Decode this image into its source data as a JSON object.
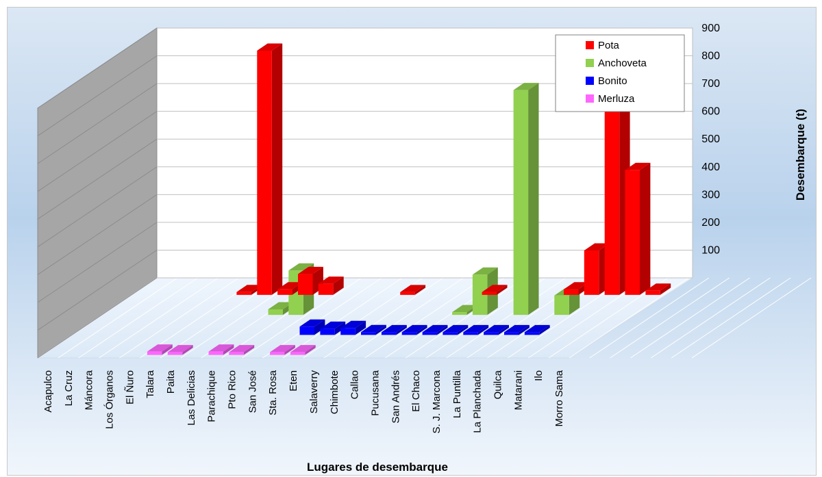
{
  "chart_data": {
    "type": "bar",
    "subtype": "3d-column",
    "xlabel": "Lugares de desembarque",
    "ylabel": "Desembarque (t)",
    "ylim": [
      0,
      900
    ],
    "yticks": [
      100,
      200,
      300,
      400,
      500,
      600,
      700,
      800,
      900
    ],
    "grid": true,
    "legend_position": "top-right",
    "categories": [
      "Acapulco",
      "La Cruz",
      "Máncora",
      "Los Órganos",
      "El Ñuro",
      "Talara",
      "Paita",
      "Las Delicias",
      "Parachique",
      "Pto Rico",
      "San José",
      "Sta. Rosa",
      "Eten",
      "Salaverry",
      "Chimbote",
      "Callao",
      "Pucusana",
      "San Andrés",
      "El Chaco",
      "S. J. Marcona",
      "La Puntilla",
      "La Planchada",
      "Quilca",
      "Matarani",
      "Ilo",
      "Morro Sama"
    ],
    "series": [
      {
        "name": "Pota",
        "color": "#ff0000",
        "values": [
          0,
          0,
          0,
          0,
          0,
          10,
          880,
          20,
          75,
          40,
          0,
          0,
          0,
          2,
          0,
          0,
          0,
          10,
          0,
          0,
          0,
          20,
          160,
          715,
          450,
          15
        ]
      },
      {
        "name": "Anchoveta",
        "color": "#92d050",
        "values": [
          0,
          0,
          0,
          0,
          0,
          0,
          0,
          0,
          20,
          160,
          0,
          0,
          0,
          0,
          0,
          0,
          0,
          5,
          145,
          0,
          810,
          0,
          70,
          0,
          0,
          0
        ]
      },
      {
        "name": "Bonito",
        "color": "#0000ff",
        "values": [
          0,
          0,
          0,
          0,
          0,
          0,
          0,
          0,
          0,
          0,
          0,
          30,
          22,
          25,
          10,
          5,
          5,
          5,
          5,
          3,
          3,
          5,
          8,
          0,
          0,
          0
        ]
      },
      {
        "name": "Merluza",
        "color": "#ff66ff",
        "values": [
          0,
          0,
          0,
          0,
          0,
          12,
          5,
          0,
          12,
          8,
          0,
          8,
          8,
          0,
          0,
          0,
          0,
          0,
          0,
          0,
          0,
          0,
          0,
          0,
          0,
          0
        ]
      }
    ]
  }
}
